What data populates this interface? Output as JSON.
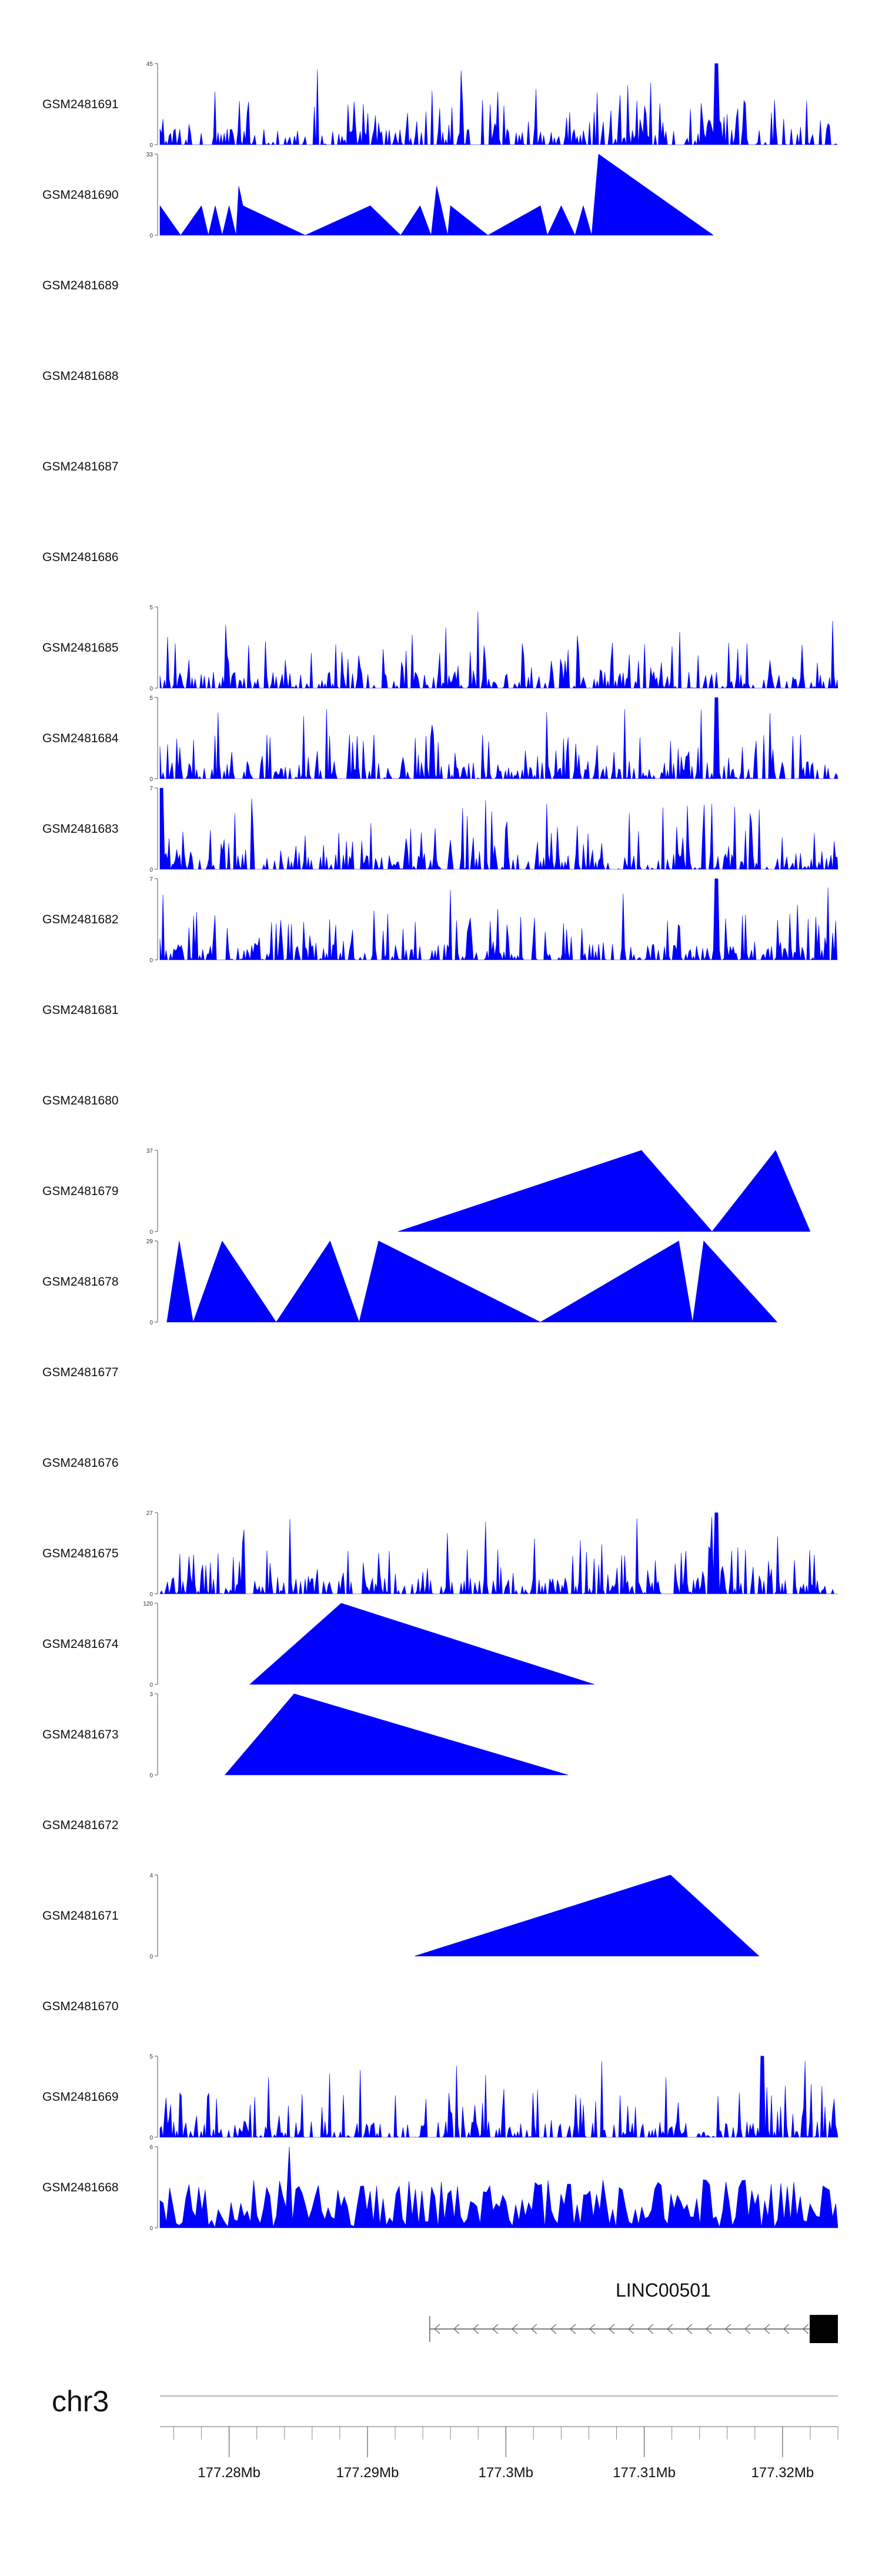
{
  "chart_data": {
    "type": "area",
    "title": "",
    "xlabel": "",
    "ylabel": "",
    "colors": {
      "signal": "#0000ff",
      "gene": "#000000",
      "axis": "#555555"
    },
    "chromosome": "chr3",
    "region": {
      "start": 177275000,
      "end": 177324000
    },
    "tracks": [
      {
        "name": "GSM2481691",
        "ymax": 45,
        "pattern": "dense",
        "peak_value": 45,
        "peak_at": 177315200
      },
      {
        "name": "GSM2481690",
        "ymax": 33,
        "pattern": "sparse",
        "points": [
          [
            177275000,
            12
          ],
          [
            177276500,
            0
          ],
          [
            177278000,
            12
          ],
          [
            177278500,
            0
          ],
          [
            177279000,
            12
          ],
          [
            177279500,
            0
          ],
          [
            177280000,
            12
          ],
          [
            177280500,
            0
          ],
          [
            177280700,
            20
          ],
          [
            177281000,
            12
          ],
          [
            177285500,
            0
          ],
          [
            177290200,
            12
          ],
          [
            177292400,
            0
          ],
          [
            177293800,
            12
          ],
          [
            177294600,
            0
          ],
          [
            177295000,
            20
          ],
          [
            177295800,
            0
          ],
          [
            177296000,
            12
          ],
          [
            177298700,
            0
          ],
          [
            177302500,
            12
          ],
          [
            177303000,
            0
          ],
          [
            177304000,
            12
          ],
          [
            177305000,
            0
          ],
          [
            177305600,
            12
          ],
          [
            177306200,
            0
          ],
          [
            177306700,
            33
          ],
          [
            177315000,
            0
          ]
        ]
      },
      {
        "name": "GSM2481689",
        "ymax": null,
        "pattern": "empty"
      },
      {
        "name": "GSM2481688",
        "ymax": null,
        "pattern": "empty"
      },
      {
        "name": "GSM2481687",
        "ymax": null,
        "pattern": "empty"
      },
      {
        "name": "GSM2481686",
        "ymax": null,
        "pattern": "empty"
      },
      {
        "name": "GSM2481685",
        "ymax": 5,
        "pattern": "dense"
      },
      {
        "name": "GSM2481684",
        "ymax": 5,
        "pattern": "dense",
        "peak_value": 5,
        "peak_at": 177315200
      },
      {
        "name": "GSM2481683",
        "ymax": 7,
        "pattern": "dense",
        "peak_value": 7,
        "peak_at": 177275100
      },
      {
        "name": "GSM2481682",
        "ymax": 7,
        "pattern": "dense",
        "peak_value": 7,
        "peak_at": 177315200
      },
      {
        "name": "GSM2481681",
        "ymax": null,
        "pattern": "empty"
      },
      {
        "name": "GSM2481680",
        "ymax": null,
        "pattern": "empty"
      },
      {
        "name": "GSM2481679",
        "ymax": 37,
        "pattern": "sparse",
        "points": [
          [
            177292200,
            0
          ],
          [
            177309800,
            37
          ],
          [
            177314900,
            0
          ],
          [
            177319500,
            37
          ],
          [
            177322000,
            0
          ]
        ]
      },
      {
        "name": "GSM2481678",
        "ymax": 29,
        "pattern": "sparse",
        "points": [
          [
            177275500,
            0
          ],
          [
            177276400,
            29
          ],
          [
            177277400,
            0
          ],
          [
            177279500,
            29
          ],
          [
            177283400,
            0
          ],
          [
            177287300,
            29
          ],
          [
            177289400,
            0
          ],
          [
            177290800,
            29
          ],
          [
            177302500,
            0
          ],
          [
            177312500,
            29
          ],
          [
            177313500,
            0
          ],
          [
            177314300,
            29
          ],
          [
            177319600,
            0
          ]
        ]
      },
      {
        "name": "GSM2481677",
        "ymax": null,
        "pattern": "empty"
      },
      {
        "name": "GSM2481676",
        "ymax": null,
        "pattern": "empty"
      },
      {
        "name": "GSM2481675",
        "ymax": 27,
        "pattern": "dense",
        "peak_value": 27,
        "peak_at": 177315200
      },
      {
        "name": "GSM2481674",
        "ymax": 120,
        "pattern": "sparse",
        "points": [
          [
            177281500,
            0
          ],
          [
            177288100,
            120
          ],
          [
            177306400,
            0
          ]
        ]
      },
      {
        "name": "GSM2481673",
        "ymax": 3,
        "pattern": "sparse",
        "points": [
          [
            177279700,
            0
          ],
          [
            177284700,
            3
          ],
          [
            177304500,
            0
          ]
        ]
      },
      {
        "name": "GSM2481672",
        "ymax": null,
        "pattern": "empty"
      },
      {
        "name": "GSM2481671",
        "ymax": 4,
        "pattern": "sparse",
        "points": [
          [
            177293400,
            0
          ],
          [
            177311900,
            4
          ],
          [
            177318300,
            0
          ]
        ]
      },
      {
        "name": "GSM2481670",
        "ymax": null,
        "pattern": "empty"
      },
      {
        "name": "GSM2481669",
        "ymax": 5,
        "pattern": "dense",
        "peak_value": 5,
        "peak_at": 177318500
      },
      {
        "name": "GSM2481668",
        "ymax": 6,
        "pattern": "spiky",
        "peak_value": 6,
        "peak_at": 177284400
      }
    ],
    "gene": {
      "name": "LINC00501",
      "start": 177294500,
      "end": 177324000,
      "strand": "-"
    },
    "axis_ticks": [
      {
        "value": 177280000,
        "label": "177.28Mb"
      },
      {
        "value": 177290000,
        "label": "177.29Mb"
      },
      {
        "value": 177300000,
        "label": "177.3Mb"
      },
      {
        "value": 177310000,
        "label": "177.31Mb"
      },
      {
        "value": 177320000,
        "label": "177.32Mb"
      }
    ]
  }
}
